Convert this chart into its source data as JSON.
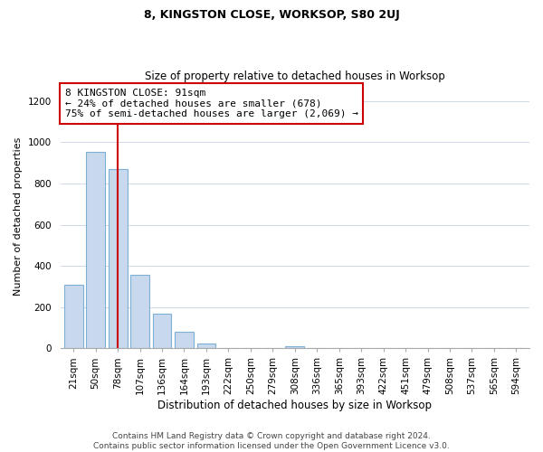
{
  "title": "8, KINGSTON CLOSE, WORKSOP, S80 2UJ",
  "subtitle": "Size of property relative to detached houses in Worksop",
  "xlabel": "Distribution of detached houses by size in Worksop",
  "ylabel": "Number of detached properties",
  "bar_labels": [
    "21sqm",
    "50sqm",
    "78sqm",
    "107sqm",
    "136sqm",
    "164sqm",
    "193sqm",
    "222sqm",
    "250sqm",
    "279sqm",
    "308sqm",
    "336sqm",
    "365sqm",
    "393sqm",
    "422sqm",
    "451sqm",
    "479sqm",
    "508sqm",
    "537sqm",
    "565sqm",
    "594sqm"
  ],
  "bar_values": [
    310,
    955,
    870,
    355,
    170,
    80,
    25,
    0,
    0,
    0,
    10,
    0,
    0,
    0,
    0,
    0,
    0,
    0,
    0,
    0,
    0
  ],
  "bar_fill_color": "#c9d9ed",
  "bar_edge_color": "#7bafd4",
  "vline_x": 2,
  "vline_color": "#cc0000",
  "ylim": [
    0,
    1280
  ],
  "yticks": [
    0,
    200,
    400,
    600,
    800,
    1000,
    1200
  ],
  "annotation_line1": "8 KINGSTON CLOSE: 91sqm",
  "annotation_line2": "← 24% of detached houses are smaller (678)",
  "annotation_line3": "75% of semi-detached houses are larger (2,069) →",
  "annotation_box_color": "#ffffff",
  "annotation_box_edge": "#cc0000",
  "footer_line1": "Contains HM Land Registry data © Crown copyright and database right 2024.",
  "footer_line2": "Contains public sector information licensed under the Open Government Licence v3.0.",
  "grid_color": "#d0d8e8",
  "background_color": "#ffffff",
  "title_fontsize": 9,
  "subtitle_fontsize": 8.5,
  "ylabel_fontsize": 8,
  "xlabel_fontsize": 8.5,
  "tick_fontsize": 7.5,
  "annotation_fontsize": 8,
  "footer_fontsize": 6.5
}
